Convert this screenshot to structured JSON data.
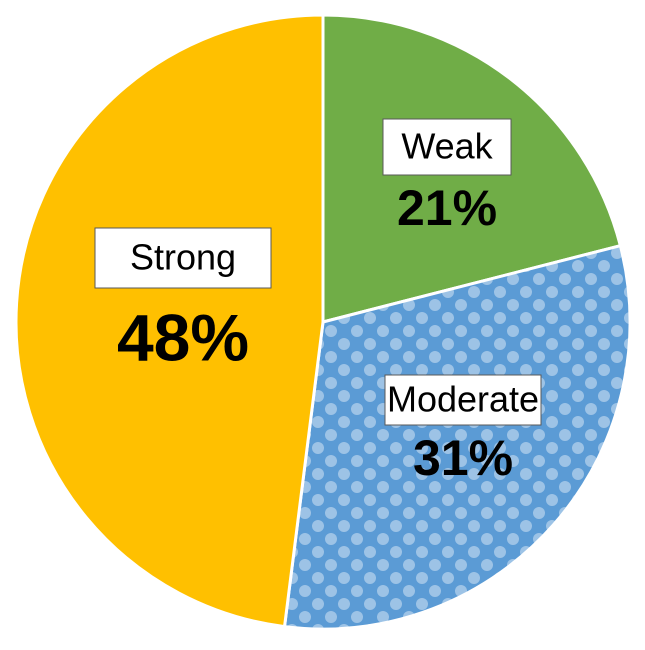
{
  "chart_data": {
    "type": "pie",
    "categories": [
      "Weak",
      "Moderate",
      "Strong"
    ],
    "values": [
      21,
      31,
      48
    ],
    "value_labels": [
      "21%",
      "31%",
      "48%"
    ],
    "colors": [
      "#70ad47",
      "#5b9bd5",
      "#ffc000"
    ]
  }
}
